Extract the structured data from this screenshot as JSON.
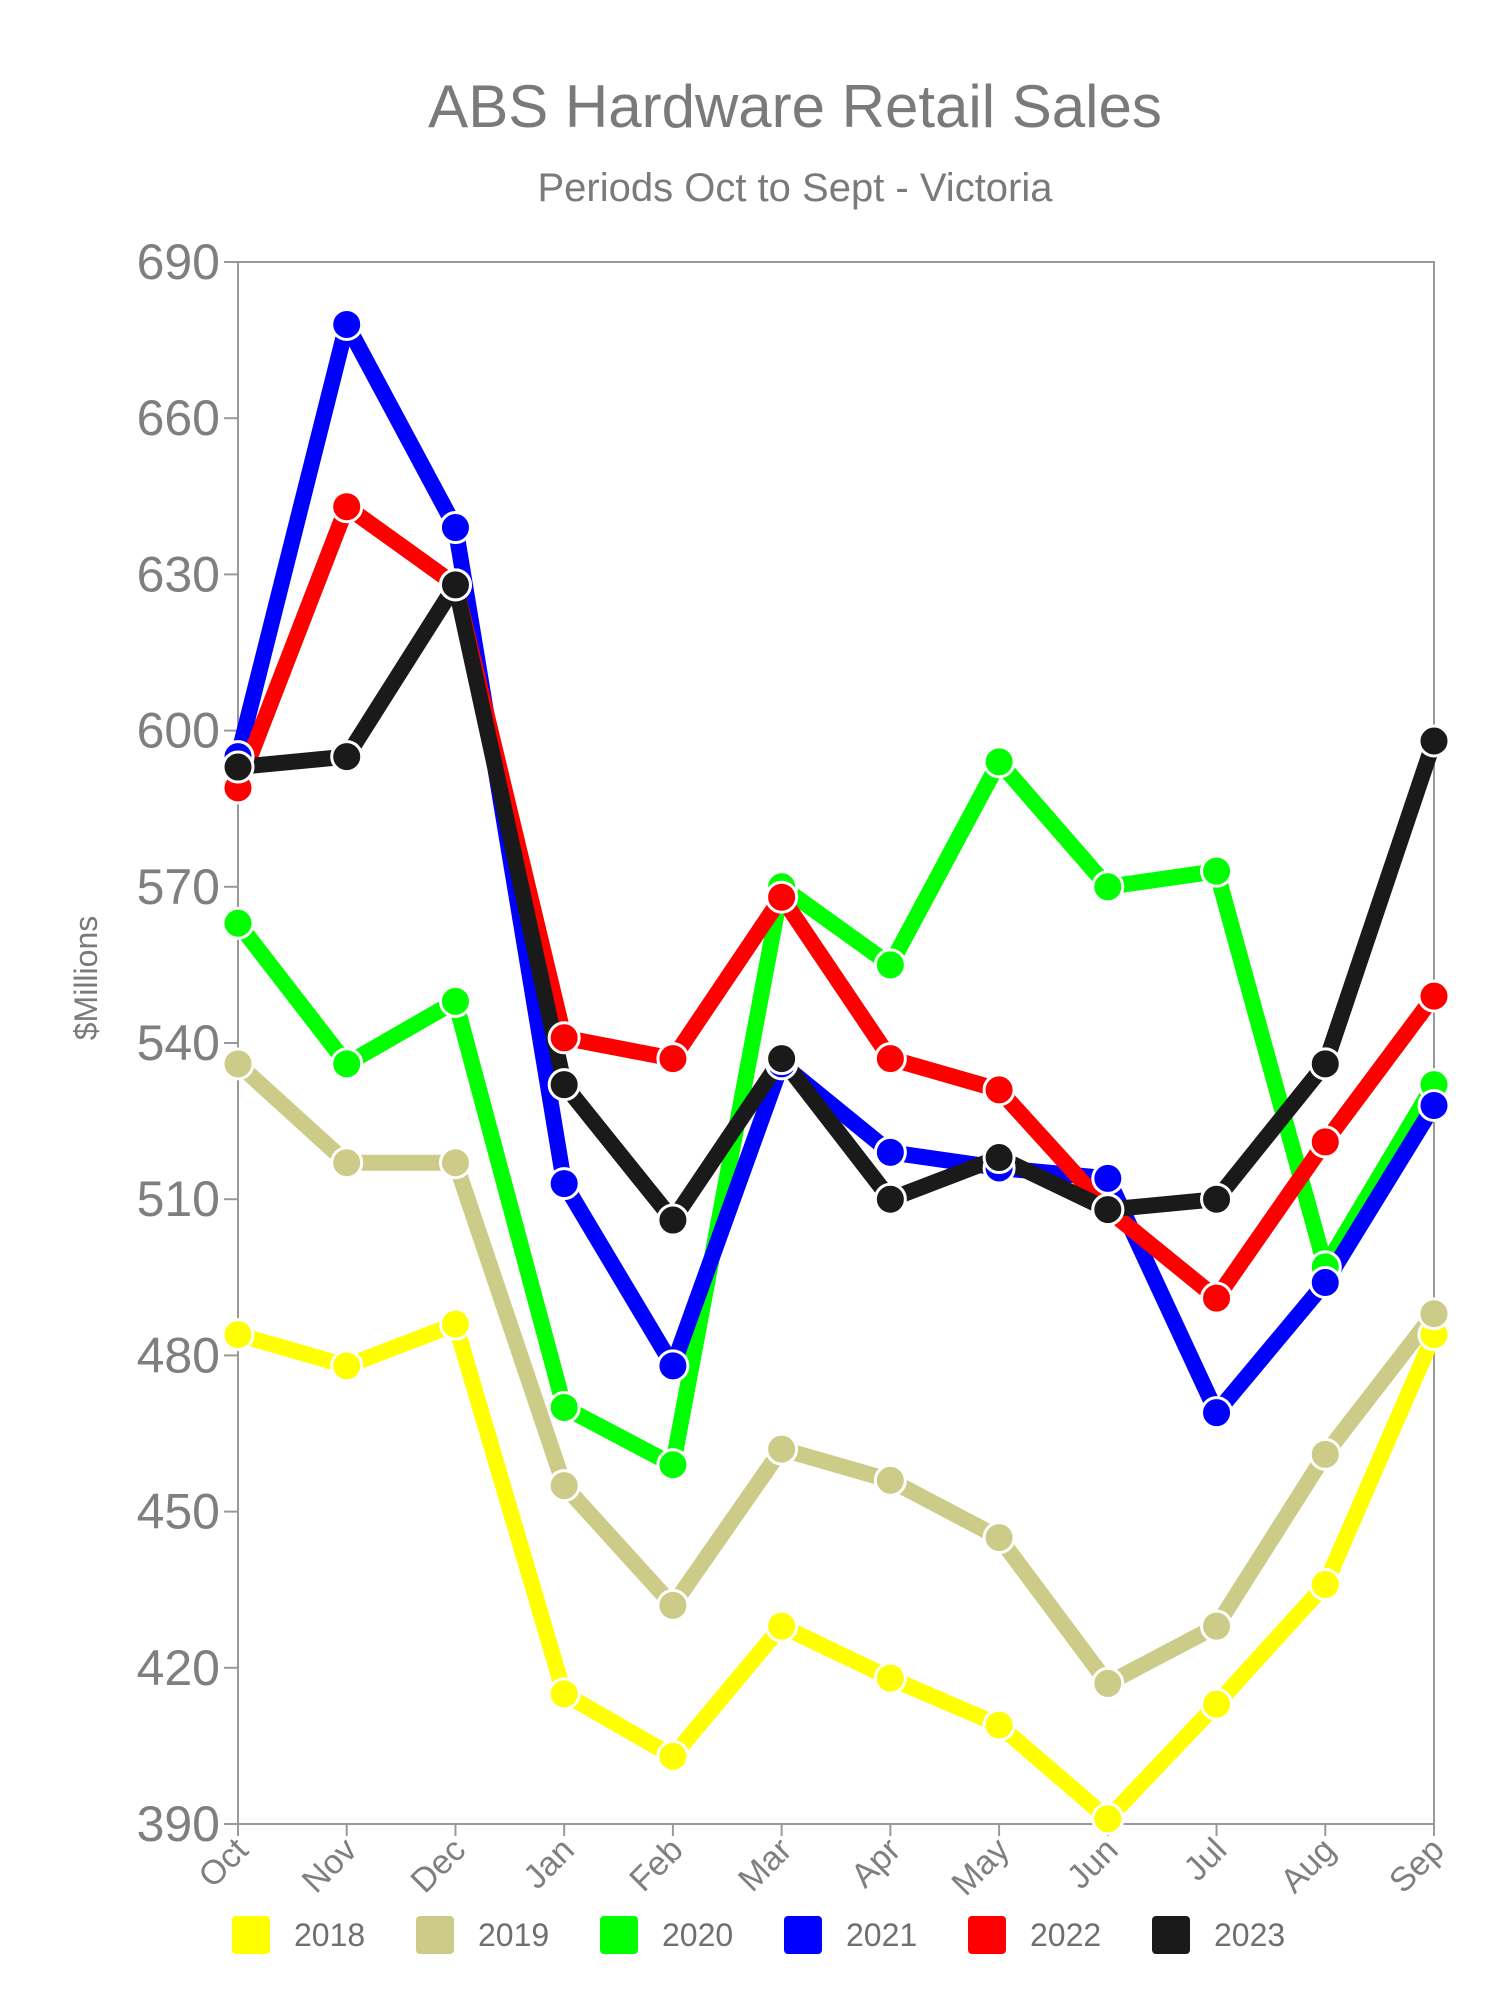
{
  "chart_data": {
    "type": "line",
    "title": "ABS Hardware Retail Sales",
    "subtitle": "Periods Oct to Sept - Victoria",
    "xlabel": "",
    "ylabel": "$Millions",
    "ylim": [
      390,
      690
    ],
    "yticks": [
      "690",
      "660",
      "630",
      "600",
      "570",
      "540",
      "510",
      "480",
      "450",
      "420",
      "390"
    ],
    "categories": [
      "Oct",
      "Nov",
      "Dec",
      "Jan",
      "Feb",
      "Mar",
      "Apr",
      "May",
      "Jun",
      "Jul",
      "Aug",
      "Sep"
    ],
    "grid": false,
    "legend_position": "bottom",
    "series": [
      {
        "name": "2018",
        "color": "#ffff00",
        "values": [
          484,
          478,
          486,
          415,
          403,
          428,
          418,
          409,
          391,
          413,
          436,
          484
        ]
      },
      {
        "name": "2019",
        "color": "#cccc88",
        "values": [
          536,
          517,
          517,
          455,
          432,
          462,
          456,
          445,
          417,
          428,
          461,
          488
        ]
      },
      {
        "name": "2020",
        "color": "#00ff00",
        "values": [
          563,
          536,
          548,
          470,
          459,
          570,
          555,
          594,
          570,
          573,
          497,
          532
        ]
      },
      {
        "name": "2021",
        "color": "#0000ff",
        "values": [
          595,
          678,
          639,
          513,
          478,
          536,
          519,
          516,
          514,
          469,
          494,
          528
        ]
      },
      {
        "name": "2022",
        "color": "#ff0000",
        "values": [
          589,
          643,
          628,
          541,
          537,
          568,
          537,
          531,
          508,
          491,
          521,
          549
        ]
      },
      {
        "name": "2023",
        "color": "#1a1a1a",
        "values": [
          593,
          595,
          628,
          532,
          506,
          537,
          510,
          518,
          508,
          510,
          536,
          598
        ]
      }
    ]
  }
}
